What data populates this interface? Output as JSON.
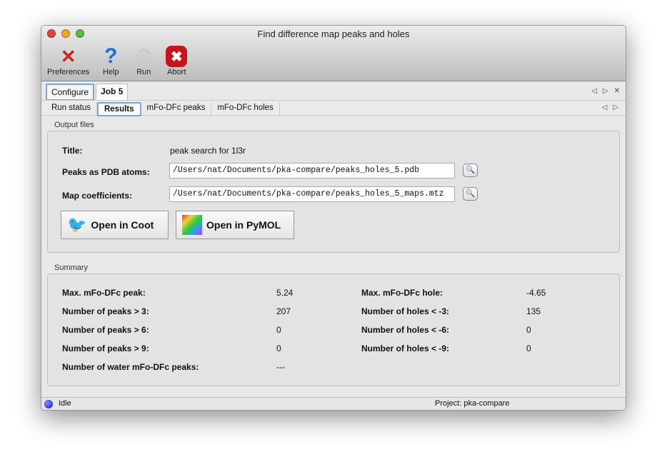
{
  "window": {
    "title": "Find difference map peaks and holes"
  },
  "toolbar": [
    {
      "label": "Preferences",
      "icon": "tools-icon"
    },
    {
      "label": "Help",
      "icon": "help-icon"
    },
    {
      "label": "Run",
      "icon": "gear-icon"
    },
    {
      "label": "Abort",
      "icon": "abort-icon"
    }
  ],
  "tabs": [
    {
      "label": "Configure"
    },
    {
      "label": "Job 5"
    }
  ],
  "subtabs": [
    {
      "label": "Run status"
    },
    {
      "label": "Results"
    },
    {
      "label": "mFo-DFc peaks"
    },
    {
      "label": "mFo-DFc holes"
    }
  ],
  "output": {
    "group": "Output files",
    "title_label": "Title:",
    "title_value": "peak search for 1l3r",
    "pdb_label": "Peaks as PDB atoms:",
    "pdb_value": "/Users/nat/Documents/pka-compare/peaks_holes_5.pdb",
    "map_label": "Map coefficients:",
    "map_value": "/Users/nat/Documents/pka-compare/peaks_holes_5_maps.mtz",
    "coot": "Open in Coot",
    "pymol": "Open in PyMOL"
  },
  "summary": {
    "group": "Summary",
    "left": [
      {
        "label": "Max. mFo-DFc peak:",
        "value": "5.24"
      },
      {
        "label": "Number of peaks > 3:",
        "value": "207"
      },
      {
        "label": "Number of peaks > 6:",
        "value": "0"
      },
      {
        "label": "Number of peaks > 9:",
        "value": "0"
      },
      {
        "label": "Number of water mFo-DFc peaks:",
        "value": "---"
      }
    ],
    "right": [
      {
        "label": "Max. mFo-DFc hole:",
        "value": "-4.65"
      },
      {
        "label": "Number of holes < -3:",
        "value": "135"
      },
      {
        "label": "Number of holes < -6:",
        "value": "0"
      },
      {
        "label": "Number of holes < -9:",
        "value": "0"
      }
    ]
  },
  "status": {
    "state": "Idle",
    "project": "Project: pka-compare"
  }
}
